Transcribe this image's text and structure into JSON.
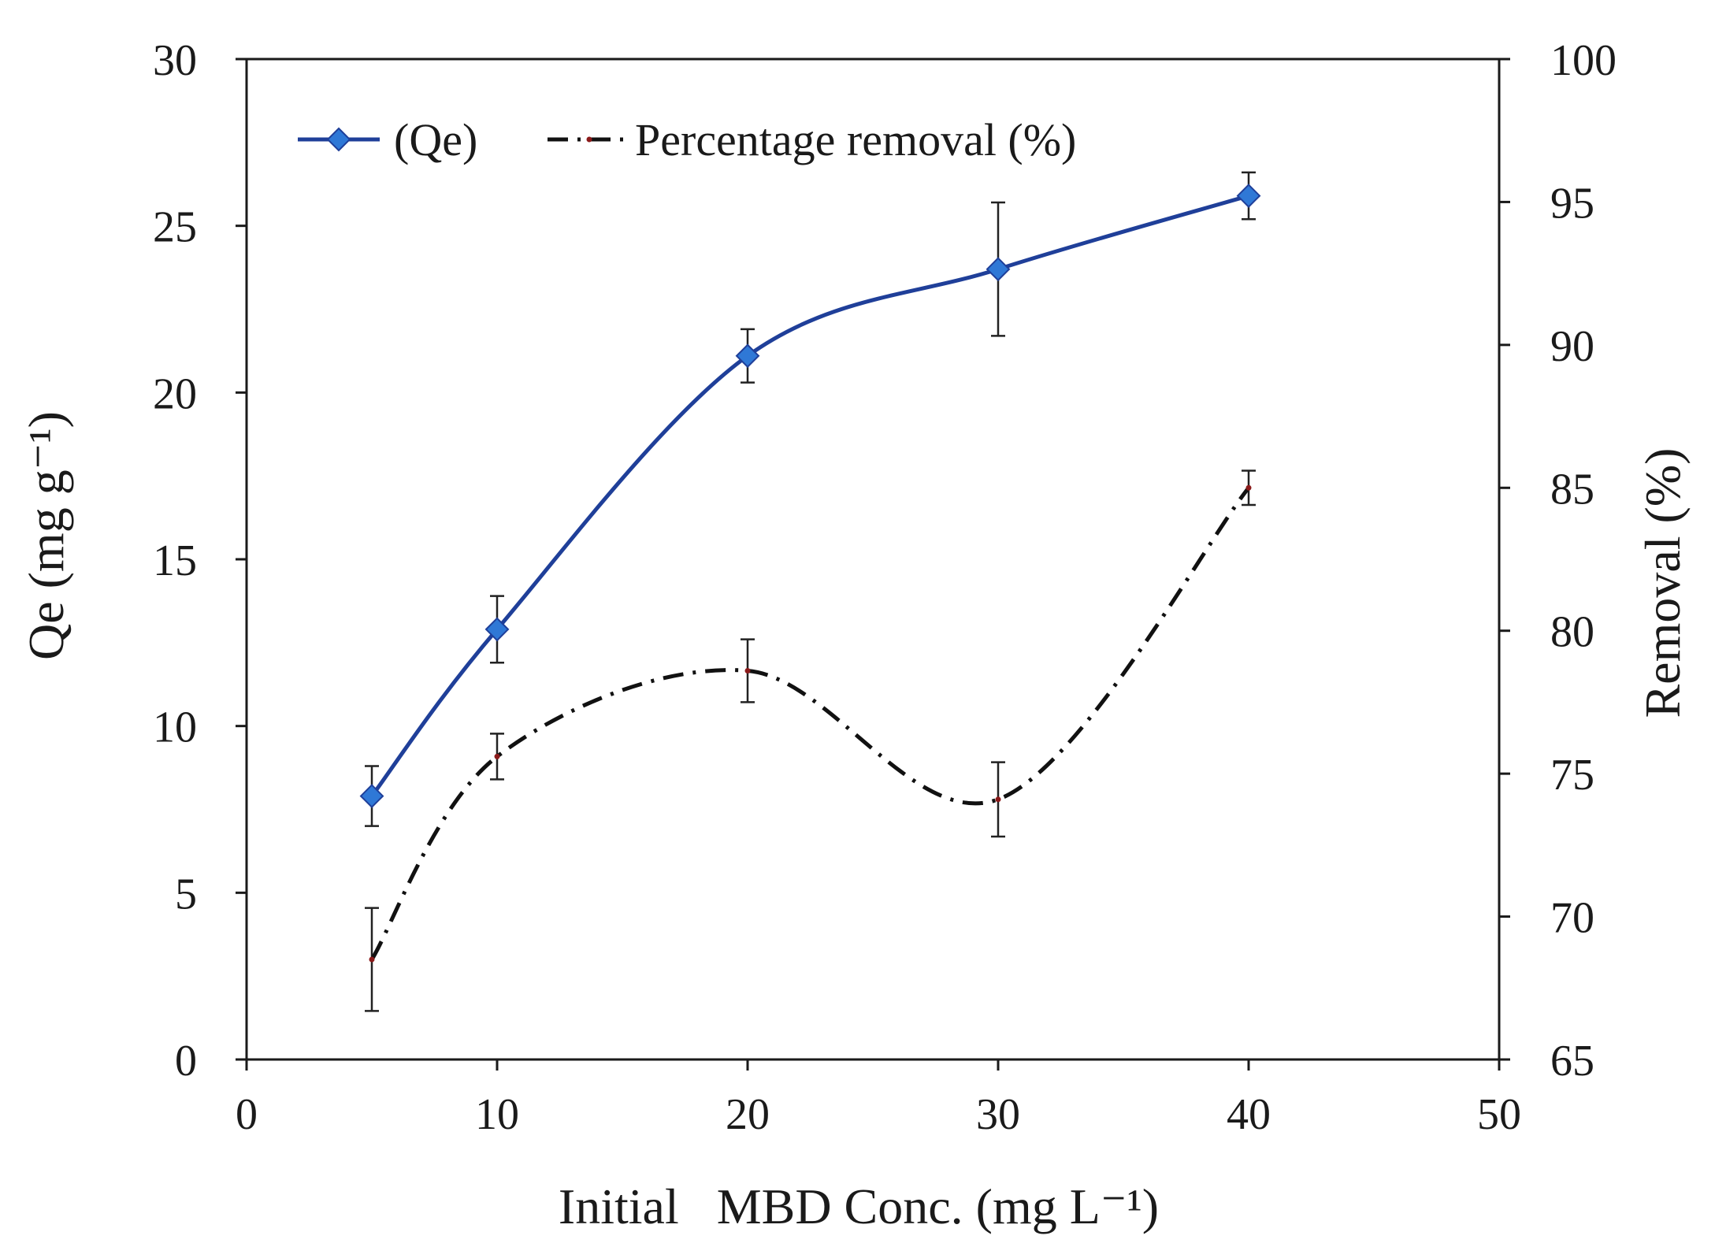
{
  "chart_data": {
    "type": "line",
    "x": [
      5,
      10,
      20,
      30,
      40
    ],
    "xlabel": "Initial   MBD Conc. (mg L⁻¹)",
    "xlim": [
      0,
      50
    ],
    "xticks": [
      "0",
      "10",
      "20",
      "30",
      "40",
      "50"
    ],
    "ylabel_left": "Qe (mg g⁻¹)",
    "ylim_left": [
      0,
      30
    ],
    "yticks_left": [
      "0",
      "5",
      "10",
      "15",
      "20",
      "25",
      "30"
    ],
    "ylabel_right": "Removal (%)",
    "ylim_right": [
      65,
      100
    ],
    "yticks_right": [
      "65",
      "70",
      "75",
      "80",
      "85",
      "90",
      "95",
      "100"
    ],
    "grid": false,
    "legend_position": "top-left",
    "series": [
      {
        "name": "(Qe)",
        "axis": "left",
        "style": "solid line with diamond markers",
        "values": [
          7.9,
          12.9,
          21.1,
          23.7,
          25.9
        ],
        "error": [
          0.9,
          1.0,
          0.8,
          2.0,
          0.7
        ],
        "color": "#1f3f99",
        "marker_color": "#2f78d6"
      },
      {
        "name": "Percentage removal (%)",
        "axis": "right",
        "style": "dash-dot line",
        "values": [
          68.5,
          75.6,
          78.6,
          74.1,
          85.0
        ],
        "error": [
          1.8,
          0.8,
          1.1,
          1.3,
          0.6
        ],
        "color": "#111111",
        "marker_color": "#8b1a1a"
      }
    ]
  }
}
